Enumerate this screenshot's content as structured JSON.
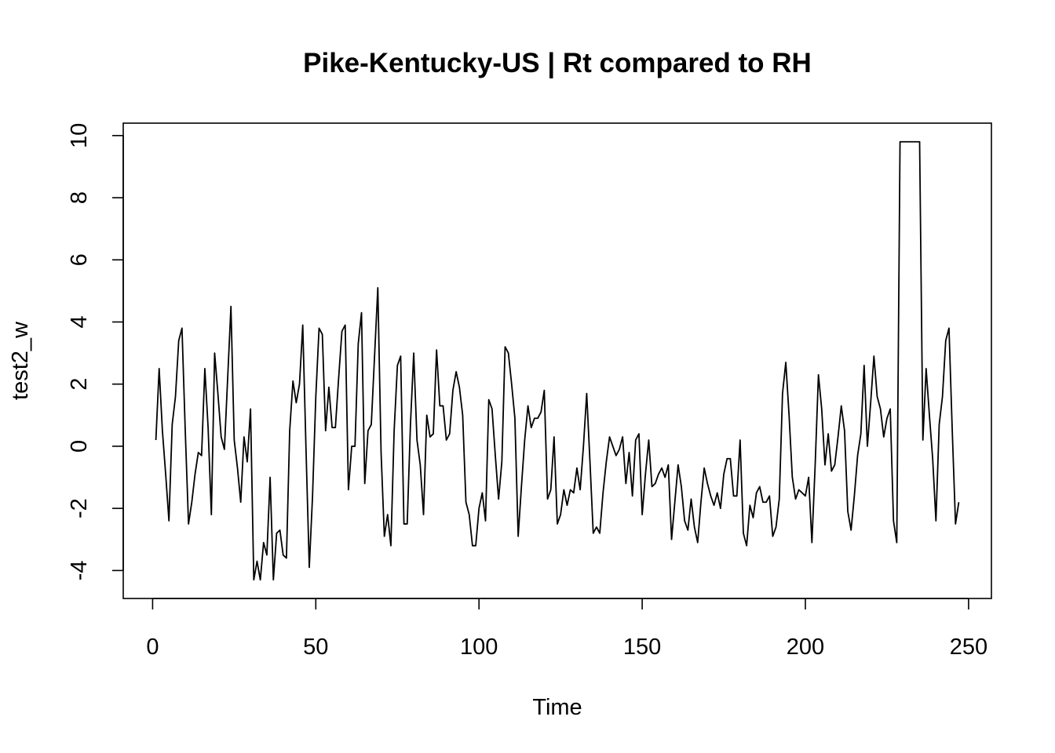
{
  "chart_data": {
    "type": "line",
    "title": "Pike-Kentucky-US | Rt compared to RH",
    "xlabel": "Time",
    "ylabel": "test2_w",
    "xlim": [
      -9,
      257
    ],
    "ylim": [
      -4.9,
      10.4
    ],
    "x_ticks": [
      0,
      50,
      100,
      150,
      200,
      250
    ],
    "x_tick_labels": [
      "0",
      "50",
      "100",
      "150",
      "200",
      "250"
    ],
    "y_ticks": [
      -4,
      -2,
      0,
      2,
      4,
      6,
      8,
      10
    ],
    "y_tick_labels": [
      "-4",
      "-2",
      "0",
      "2",
      "4",
      "6",
      "8",
      "10"
    ],
    "grid": false,
    "series": [
      {
        "color": "#000000",
        "x_start": 1,
        "values": [
          0.2,
          2.5,
          0.5,
          -0.9,
          -2.4,
          0.7,
          1.6,
          3.4,
          3.8,
          0.5,
          -2.5,
          -1.8,
          -0.9,
          -0.2,
          -0.3,
          2.5,
          0.6,
          -2.2,
          3.0,
          1.7,
          0.3,
          -0.1,
          2.2,
          4.5,
          0.2,
          -0.7,
          -1.8,
          0.3,
          -0.5,
          1.2,
          -4.3,
          -3.7,
          -4.3,
          -3.1,
          -3.5,
          -1.0,
          -4.3,
          -2.8,
          -2.7,
          -3.5,
          -3.6,
          0.5,
          2.1,
          1.4,
          2.0,
          3.9,
          -0.1,
          -3.9,
          -1.6,
          1.6,
          3.8,
          3.6,
          0.5,
          1.9,
          0.6,
          0.6,
          2.2,
          3.7,
          3.9,
          -1.4,
          0.0,
          0.0,
          3.3,
          4.3,
          -1.2,
          0.5,
          0.7,
          2.9,
          5.1,
          -0.2,
          -2.9,
          -2.2,
          -3.2,
          0.5,
          2.6,
          2.9,
          -2.5,
          -2.5,
          0.7,
          3.0,
          0.2,
          -0.6,
          -2.2,
          1.0,
          0.3,
          0.4,
          3.1,
          1.3,
          1.3,
          0.2,
          0.4,
          1.8,
          2.4,
          1.9,
          1.0,
          -1.8,
          -2.2,
          -3.2,
          -3.2,
          -2.0,
          -1.5,
          -2.4,
          1.5,
          1.2,
          -0.3,
          -1.7,
          -0.5,
          3.2,
          3.0,
          2.0,
          0.9,
          -2.9,
          -1.3,
          0.2,
          1.3,
          0.6,
          0.9,
          0.9,
          1.1,
          1.8,
          -1.7,
          -1.4,
          0.3,
          -2.5,
          -2.2,
          -1.4,
          -1.9,
          -1.4,
          -1.5,
          -0.7,
          -1.4,
          0.0,
          1.7,
          -0.5,
          -2.8,
          -2.6,
          -2.8,
          -1.5,
          -0.5,
          0.3,
          0.0,
          -0.3,
          -0.1,
          0.3,
          -1.2,
          -0.2,
          -1.6,
          0.2,
          0.4,
          -2.2,
          -0.9,
          0.2,
          -1.3,
          -1.2,
          -0.9,
          -0.7,
          -1.0,
          -0.6,
          -3.0,
          -1.8,
          -0.6,
          -1.3,
          -2.4,
          -2.7,
          -1.7,
          -2.6,
          -3.1,
          -1.8,
          -0.7,
          -1.2,
          -1.6,
          -1.9,
          -1.5,
          -2.0,
          -0.9,
          -0.4,
          -0.4,
          -1.6,
          -1.6,
          0.2,
          -2.8,
          -3.2,
          -1.9,
          -2.3,
          -1.5,
          -1.3,
          -1.8,
          -1.8,
          -1.6,
          -2.9,
          -2.6,
          -1.7,
          1.7,
          2.7,
          1.0,
          -1.0,
          -1.7,
          -1.4,
          -1.5,
          -1.6,
          -1.0,
          -3.1,
          -0.6,
          2.3,
          1.2,
          -0.6,
          0.4,
          -0.8,
          -0.6,
          0.3,
          1.3,
          0.5,
          -2.1,
          -2.7,
          -1.6,
          -0.3,
          0.4,
          2.6,
          0.0,
          1.4,
          2.9,
          1.6,
          1.2,
          0.3,
          0.9,
          1.2,
          -2.4,
          -3.1,
          9.8,
          9.8,
          9.8,
          9.8,
          9.8,
          9.8,
          9.8,
          0.2,
          2.5,
          1.0,
          -0.4,
          -2.4,
          0.7,
          1.6,
          3.4,
          3.8,
          0.5,
          -2.5,
          -1.8
        ]
      }
    ]
  }
}
